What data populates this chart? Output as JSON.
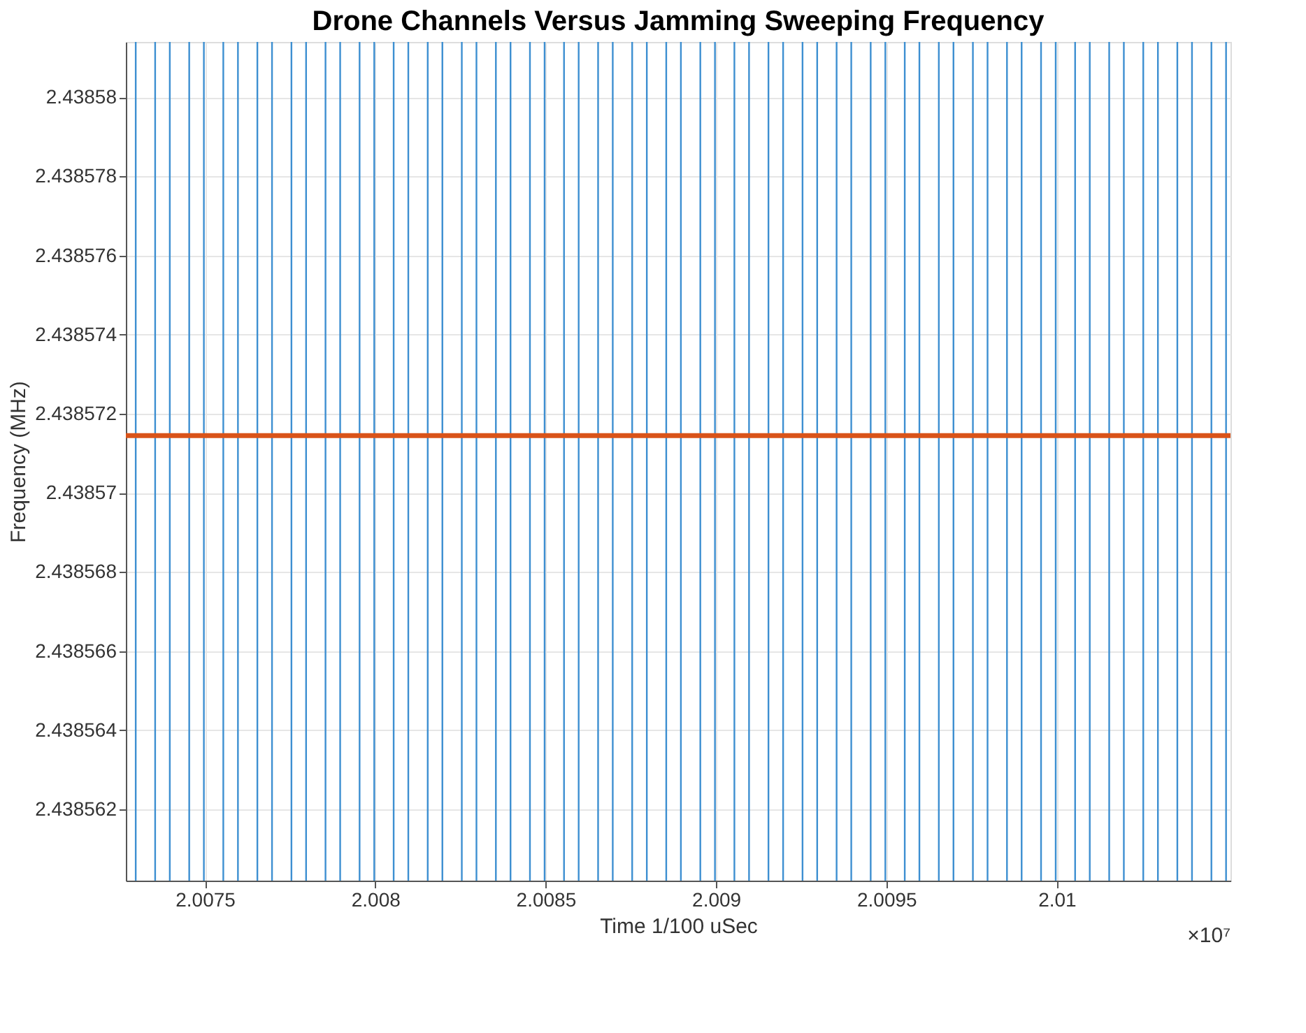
{
  "chart_data": {
    "type": "line",
    "title": "Drone Channels Versus Jamming Sweeping Frequency",
    "xlabel": "Time 1/100 uSec",
    "ylabel": "Frequency (MHz)",
    "annotations": [
      "×10⁷"
    ],
    "xlim": [
      2.007268,
      2.01051
    ],
    "xticks": [
      2.0075,
      2.008,
      2.0085,
      2.009,
      2.0095,
      2.01
    ],
    "ylim": [
      2.4385602,
      2.4385814
    ],
    "yticks": [
      2.438562,
      2.438564,
      2.438566,
      2.438568,
      2.43857,
      2.438572,
      2.438574,
      2.438576,
      2.438578,
      2.43858
    ],
    "grid": true,
    "series": [
      {
        "color": "#d95319",
        "x": [
          2.007268,
          2.01051
        ],
        "values": [
          2.43857145,
          2.43857145
        ]
      }
    ],
    "ref_lines": [
      {
        "axis": "x",
        "value": 2.007297,
        "color": "#3d8fd1"
      },
      {
        "axis": "x",
        "value": 2.007354,
        "color": "#3d8fd1"
      },
      {
        "axis": "x",
        "value": 2.007397,
        "color": "#3d8fd1"
      },
      {
        "axis": "x",
        "value": 2.007454,
        "color": "#3d8fd1"
      },
      {
        "axis": "x",
        "value": 2.007497,
        "color": "#3d8fd1"
      },
      {
        "axis": "x",
        "value": 2.007554,
        "color": "#3d8fd1"
      },
      {
        "axis": "x",
        "value": 2.007597,
        "color": "#3d8fd1"
      },
      {
        "axis": "x",
        "value": 2.007654,
        "color": "#3d8fd1"
      },
      {
        "axis": "x",
        "value": 2.007697,
        "color": "#3d8fd1"
      },
      {
        "axis": "x",
        "value": 2.007754,
        "color": "#3d8fd1"
      },
      {
        "axis": "x",
        "value": 2.007797,
        "color": "#3d8fd1"
      },
      {
        "axis": "x",
        "value": 2.007854,
        "color": "#3d8fd1"
      },
      {
        "axis": "x",
        "value": 2.007897,
        "color": "#3d8fd1"
      },
      {
        "axis": "x",
        "value": 2.007954,
        "color": "#3d8fd1"
      },
      {
        "axis": "x",
        "value": 2.007997,
        "color": "#3d8fd1"
      },
      {
        "axis": "x",
        "value": 2.008054,
        "color": "#3d8fd1"
      },
      {
        "axis": "x",
        "value": 2.008097,
        "color": "#3d8fd1"
      },
      {
        "axis": "x",
        "value": 2.008154,
        "color": "#3d8fd1"
      },
      {
        "axis": "x",
        "value": 2.008197,
        "color": "#3d8fd1"
      },
      {
        "axis": "x",
        "value": 2.008254,
        "color": "#3d8fd1"
      },
      {
        "axis": "x",
        "value": 2.008297,
        "color": "#3d8fd1"
      },
      {
        "axis": "x",
        "value": 2.008354,
        "color": "#3d8fd1"
      },
      {
        "axis": "x",
        "value": 2.008397,
        "color": "#3d8fd1"
      },
      {
        "axis": "x",
        "value": 2.008454,
        "color": "#3d8fd1"
      },
      {
        "axis": "x",
        "value": 2.008497,
        "color": "#3d8fd1"
      },
      {
        "axis": "x",
        "value": 2.008554,
        "color": "#3d8fd1"
      },
      {
        "axis": "x",
        "value": 2.008597,
        "color": "#3d8fd1"
      },
      {
        "axis": "x",
        "value": 2.008654,
        "color": "#3d8fd1"
      },
      {
        "axis": "x",
        "value": 2.008697,
        "color": "#3d8fd1"
      },
      {
        "axis": "x",
        "value": 2.008754,
        "color": "#3d8fd1"
      },
      {
        "axis": "x",
        "value": 2.008797,
        "color": "#3d8fd1"
      },
      {
        "axis": "x",
        "value": 2.008854,
        "color": "#3d8fd1"
      },
      {
        "axis": "x",
        "value": 2.008897,
        "color": "#3d8fd1"
      },
      {
        "axis": "x",
        "value": 2.008954,
        "color": "#3d8fd1"
      },
      {
        "axis": "x",
        "value": 2.008997,
        "color": "#3d8fd1"
      },
      {
        "axis": "x",
        "value": 2.009054,
        "color": "#3d8fd1"
      },
      {
        "axis": "x",
        "value": 2.009097,
        "color": "#3d8fd1"
      },
      {
        "axis": "x",
        "value": 2.009154,
        "color": "#3d8fd1"
      },
      {
        "axis": "x",
        "value": 2.009197,
        "color": "#3d8fd1"
      },
      {
        "axis": "x",
        "value": 2.009254,
        "color": "#3d8fd1"
      },
      {
        "axis": "x",
        "value": 2.009297,
        "color": "#3d8fd1"
      },
      {
        "axis": "x",
        "value": 2.009354,
        "color": "#3d8fd1"
      },
      {
        "axis": "x",
        "value": 2.009397,
        "color": "#3d8fd1"
      },
      {
        "axis": "x",
        "value": 2.009454,
        "color": "#3d8fd1"
      },
      {
        "axis": "x",
        "value": 2.009497,
        "color": "#3d8fd1"
      },
      {
        "axis": "x",
        "value": 2.009554,
        "color": "#3d8fd1"
      },
      {
        "axis": "x",
        "value": 2.009597,
        "color": "#3d8fd1"
      },
      {
        "axis": "x",
        "value": 2.009654,
        "color": "#3d8fd1"
      },
      {
        "axis": "x",
        "value": 2.009697,
        "color": "#3d8fd1"
      },
      {
        "axis": "x",
        "value": 2.009754,
        "color": "#3d8fd1"
      },
      {
        "axis": "x",
        "value": 2.009797,
        "color": "#3d8fd1"
      },
      {
        "axis": "x",
        "value": 2.009854,
        "color": "#3d8fd1"
      },
      {
        "axis": "x",
        "value": 2.009897,
        "color": "#3d8fd1"
      },
      {
        "axis": "x",
        "value": 2.009954,
        "color": "#3d8fd1"
      },
      {
        "axis": "x",
        "value": 2.009997,
        "color": "#3d8fd1"
      },
      {
        "axis": "x",
        "value": 2.010054,
        "color": "#3d8fd1"
      },
      {
        "axis": "x",
        "value": 2.010097,
        "color": "#3d8fd1"
      },
      {
        "axis": "x",
        "value": 2.010154,
        "color": "#3d8fd1"
      },
      {
        "axis": "x",
        "value": 2.010197,
        "color": "#3d8fd1"
      },
      {
        "axis": "x",
        "value": 2.010254,
        "color": "#3d8fd1"
      },
      {
        "axis": "x",
        "value": 2.010297,
        "color": "#3d8fd1"
      },
      {
        "axis": "x",
        "value": 2.010354,
        "color": "#3d8fd1"
      },
      {
        "axis": "x",
        "value": 2.010397,
        "color": "#3d8fd1"
      },
      {
        "axis": "x",
        "value": 2.010454,
        "color": "#3d8fd1"
      },
      {
        "axis": "x",
        "value": 2.010497,
        "color": "#3d8fd1"
      }
    ]
  }
}
